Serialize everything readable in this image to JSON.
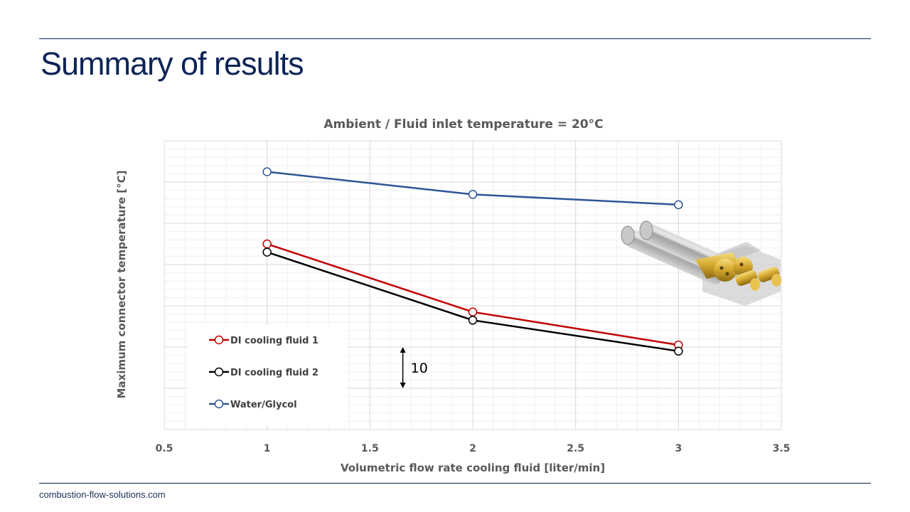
{
  "slide": {
    "title": "Summary of results",
    "footer": "combustion-flow-solutions.com"
  },
  "colors": {
    "brand": "#0d2456",
    "series_red": "#c00000",
    "series_black": "#000000",
    "series_blue": "#2f5597"
  },
  "chart_data": {
    "type": "line",
    "title": "Ambient / Fluid inlet temperature = 20°C",
    "xlabel": "Volumetric flow rate cooling fluid [liter/min]",
    "ylabel": "Maximum connector temperature [°C]",
    "xlim": [
      0.5,
      3.5
    ],
    "x_ticks": [
      "0.5",
      "1",
      "1.5",
      "2",
      "2.5",
      "3",
      "3.5"
    ],
    "ylim": [
      0,
      70
    ],
    "y_tick_labels_shown": false,
    "grid": true,
    "legend_position": "bottom-left",
    "series": [
      {
        "name": "DI cooling fluid 1",
        "color": "#c00000",
        "x": [
          1,
          2,
          3
        ],
        "y": [
          45,
          28.5,
          20.5
        ]
      },
      {
        "name": "DI cooling fluid 2",
        "color": "#000000",
        "x": [
          1,
          2,
          3
        ],
        "y": [
          43,
          26.5,
          19
        ]
      },
      {
        "name": "Water/Glycol",
        "color": "#2f5597",
        "x": [
          1,
          2,
          3
        ],
        "y": [
          62.5,
          57,
          54.5
        ]
      }
    ],
    "scale_annotation": {
      "label": "10",
      "x": 1.66,
      "y_from": 10,
      "y_to": 20
    },
    "inset_image": "connector-3d-render"
  }
}
